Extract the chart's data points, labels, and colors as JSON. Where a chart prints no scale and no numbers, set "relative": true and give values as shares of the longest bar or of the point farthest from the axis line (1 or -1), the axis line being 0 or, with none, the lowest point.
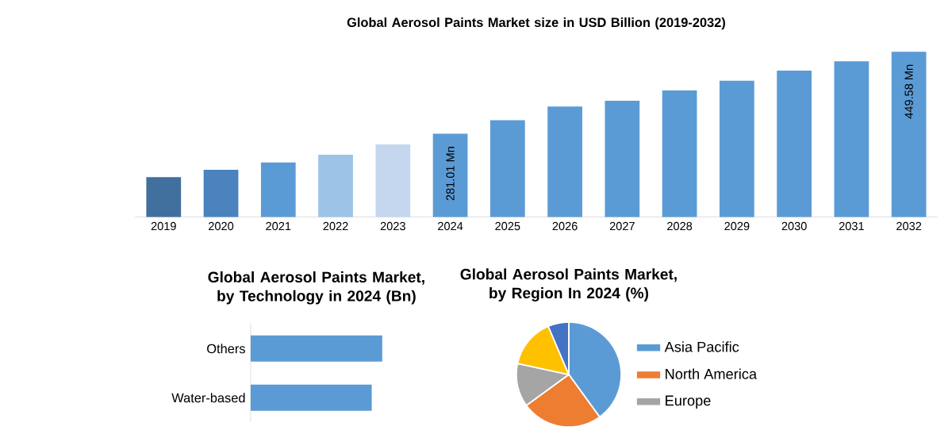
{
  "chart_data": [
    {
      "type": "bar",
      "title": "Global Aerosol Paints Market size in USD Billion (2019-2032)",
      "ylim": [
        110,
        455
      ],
      "categories": [
        "2019",
        "2020",
        "2021",
        "2022",
        "2023",
        "2024",
        "2025",
        "2026",
        "2027",
        "2028",
        "2029",
        "2030",
        "2031",
        "2032"
      ],
      "values": [
        192,
        207,
        222,
        238,
        259,
        281.01,
        309,
        337,
        349,
        370,
        390,
        411,
        430,
        449.58
      ],
      "colors": [
        "#41709f",
        "#4a83bd",
        "#5b9bd5",
        "#9dc3e6",
        "#c5d7ee",
        "#5b9bd5",
        "#5b9bd5",
        "#5b9bd5",
        "#5b9bd5",
        "#5b9bd5",
        "#5b9bd5",
        "#5b9bd5",
        "#5b9bd5",
        "#5b9bd5"
      ],
      "value_labels": [
        null,
        null,
        null,
        null,
        null,
        "281.01 Mn",
        null,
        null,
        null,
        null,
        null,
        null,
        null,
        "449.58 Mn"
      ]
    },
    {
      "type": "bar",
      "orientation": "horizontal",
      "title": "Global Aerosol Paints Market, by Technology in 2024 (Bn)",
      "relative": true,
      "categories": [
        "Others",
        "Water-based"
      ],
      "values": [
        1,
        0.92
      ],
      "color": "#5b9bd5"
    },
    {
      "type": "pie",
      "title": "Global Aerosol Paints Market, by Region In 2024 (%)",
      "legend": "right",
      "categories": [
        "Asia Pacific",
        "North America",
        "Europe",
        null,
        null
      ],
      "values": [
        40,
        25,
        13.4,
        15.2,
        6.4
      ],
      "colors": [
        "#5b9bd5",
        "#ed7d31",
        "#a5a5a5",
        "#ffc000",
        "#4472c4"
      ]
    }
  ]
}
